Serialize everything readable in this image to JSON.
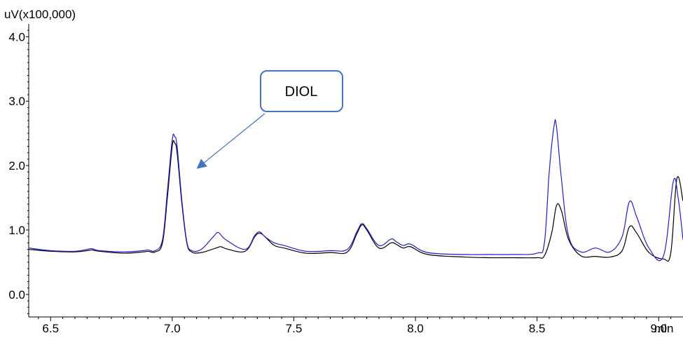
{
  "chart_data": {
    "type": "line",
    "y_unit_label": "uV(x100,000)",
    "x_unit_label": "min",
    "xlim": [
      6.41,
      9.1
    ],
    "ylim": [
      -0.35,
      4.2
    ],
    "x_ticks": [
      6.5,
      7.0,
      7.5,
      8.0,
      8.5,
      9.0
    ],
    "x_tick_labels": [
      "6.5",
      "7.0",
      "7.5",
      "8.0",
      "8.5",
      "9.0"
    ],
    "y_ticks": [
      0.0,
      1.0,
      2.0,
      3.0,
      4.0
    ],
    "y_tick_labels": [
      "0.0",
      "1.0",
      "2.0",
      "3.0",
      "4.0"
    ],
    "grid": false,
    "annotation": {
      "text": "DIOL",
      "target": [
        7.1,
        1.95
      ],
      "line_color": "#4472c4",
      "box_border_color": "#4472c4"
    },
    "series": [
      {
        "color": "#000000",
        "x": [
          6.41,
          6.5,
          6.6,
          6.65,
          6.67,
          6.7,
          6.8,
          6.88,
          6.9,
          6.93,
          6.96,
          6.98,
          7.0,
          7.01,
          7.02,
          7.04,
          7.06,
          7.08,
          7.12,
          7.18,
          7.2,
          7.23,
          7.3,
          7.34,
          7.36,
          7.38,
          7.42,
          7.46,
          7.55,
          7.65,
          7.72,
          7.76,
          7.78,
          7.8,
          7.85,
          7.9,
          7.92,
          7.95,
          7.98,
          8.05,
          8.2,
          8.3,
          8.4,
          8.5,
          8.53,
          8.56,
          8.58,
          8.6,
          8.63,
          8.68,
          8.74,
          8.8,
          8.85,
          8.88,
          8.91,
          8.96,
          9.02,
          9.05,
          9.075,
          9.1
        ],
        "values": [
          0.7,
          0.67,
          0.66,
          0.68,
          0.69,
          0.67,
          0.64,
          0.66,
          0.67,
          0.66,
          0.8,
          1.5,
          2.3,
          2.35,
          2.2,
          1.4,
          0.8,
          0.66,
          0.65,
          0.72,
          0.74,
          0.7,
          0.67,
          0.9,
          0.95,
          0.9,
          0.76,
          0.72,
          0.64,
          0.65,
          0.66,
          0.95,
          1.08,
          1.0,
          0.72,
          0.8,
          0.78,
          0.72,
          0.74,
          0.62,
          0.58,
          0.57,
          0.57,
          0.57,
          0.6,
          0.95,
          1.38,
          1.3,
          0.85,
          0.6,
          0.59,
          0.58,
          0.68,
          1.05,
          0.95,
          0.65,
          0.55,
          0.65,
          1.8,
          1.45
        ]
      },
      {
        "color": "#1f1fcc",
        "x": [
          6.41,
          6.5,
          6.6,
          6.65,
          6.67,
          6.7,
          6.8,
          6.88,
          6.9,
          6.93,
          6.96,
          6.98,
          7.0,
          7.01,
          7.02,
          7.04,
          7.06,
          7.08,
          7.12,
          7.17,
          7.19,
          7.22,
          7.3,
          7.34,
          7.36,
          7.38,
          7.42,
          7.46,
          7.55,
          7.65,
          7.72,
          7.76,
          7.78,
          7.8,
          7.85,
          7.9,
          7.92,
          7.95,
          7.98,
          8.05,
          8.2,
          8.3,
          8.4,
          8.5,
          8.53,
          8.55,
          8.57,
          8.58,
          8.6,
          8.63,
          8.68,
          8.74,
          8.8,
          8.85,
          8.88,
          8.91,
          8.96,
          9.02,
          9.06,
          9.08,
          9.1
        ],
        "values": [
          0.72,
          0.68,
          0.67,
          0.7,
          0.71,
          0.68,
          0.66,
          0.68,
          0.69,
          0.68,
          0.85,
          1.6,
          2.4,
          2.45,
          2.3,
          1.45,
          0.82,
          0.68,
          0.7,
          0.9,
          0.96,
          0.85,
          0.7,
          0.92,
          0.97,
          0.9,
          0.8,
          0.76,
          0.67,
          0.68,
          0.7,
          0.98,
          1.1,
          1.02,
          0.76,
          0.86,
          0.82,
          0.76,
          0.78,
          0.65,
          0.62,
          0.62,
          0.62,
          0.64,
          0.8,
          1.9,
          2.62,
          2.6,
          1.8,
          0.9,
          0.66,
          0.72,
          0.66,
          0.9,
          1.44,
          1.2,
          0.72,
          0.6,
          1.75,
          1.5,
          0.85
        ]
      }
    ]
  }
}
